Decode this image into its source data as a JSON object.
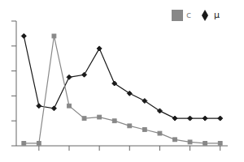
{
  "chart_data": {
    "type": "line",
    "x": [
      1,
      2,
      3,
      4,
      5,
      6,
      7,
      8,
      9,
      10,
      11,
      12,
      13,
      14
    ],
    "series": [
      {
        "name": "μ",
        "color": "#1a1a1a",
        "marker": "diamond",
        "values": [
          88,
          32,
          30,
          55,
          57,
          78,
          50,
          42,
          36,
          28,
          22,
          22,
          22,
          22
        ]
      },
      {
        "name": "c",
        "color": "#888888",
        "marker": "square",
        "values": [
          2,
          2,
          88,
          32,
          22,
          23,
          20,
          16,
          13,
          10,
          5,
          3,
          2,
          2
        ]
      }
    ],
    "xlim": [
      0.5,
      14.5
    ],
    "ylim": [
      0,
      100
    ],
    "xticks": [
      2,
      4,
      6,
      8,
      10,
      12,
      14
    ],
    "yticks": [
      0,
      20,
      40,
      60,
      80,
      100
    ],
    "grid": false,
    "legend": "upper right",
    "tick_labels": false
  }
}
